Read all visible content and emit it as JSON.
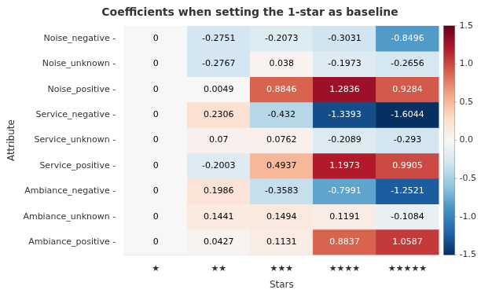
{
  "chart_data": {
    "type": "heatmap",
    "title": "Coefficients when setting the 1-star as baseline",
    "x_label": "Stars",
    "y_label": "Attribute",
    "categories": [
      "★",
      "★★",
      "★★★",
      "★★★★",
      "★★★★★"
    ],
    "rows": [
      "Noise_negative -",
      "Noise_unknown -",
      "Noise_positive -",
      "Service_negative -",
      "Service_unknown -",
      "Service_positive -",
      "Ambiance_negative -",
      "Ambiance_unknown -",
      "Ambiance_positive -"
    ],
    "values": [
      [
        0,
        -0.2751,
        -0.2073,
        -0.3031,
        -0.8496
      ],
      [
        0,
        -0.2767,
        0.038,
        -0.1973,
        -0.2656
      ],
      [
        0,
        0.0049,
        0.8846,
        1.2836,
        0.9284
      ],
      [
        0,
        0.2306,
        -0.432,
        -1.3393,
        -1.6044
      ],
      [
        0,
        0.07,
        0.0762,
        -0.2089,
        -0.293
      ],
      [
        0,
        -0.2003,
        0.4937,
        1.1973,
        0.9905
      ],
      [
        0,
        0.1986,
        -0.3583,
        -0.7991,
        -1.2521
      ],
      [
        0,
        0.1441,
        0.1494,
        0.1191,
        -0.1084
      ],
      [
        0,
        0.0427,
        0.1131,
        0.8837,
        1.0587
      ]
    ],
    "data_labels": true,
    "grid": false,
    "colorbar_lim": [
      -1.5,
      1.5
    ],
    "colorbar_center": 0,
    "colorbar_ticks": [
      1.5,
      {
        "value": 1,
        "label": "1.0"
      },
      0.5,
      {
        "value": 0,
        "label": "0.0"
      },
      -0.5,
      {
        "value": -1,
        "label": "-1.0"
      },
      -1.5
    ],
    "colorbar_colors": [
      "#053061",
      "#2166ac",
      "#4393c3",
      "#92c5de",
      "#d1e5f0",
      "#f7f7f7",
      "#fddbc7",
      "#f4a582",
      "#d6604d",
      "#b2182b",
      "#67001f"
    ]
  }
}
